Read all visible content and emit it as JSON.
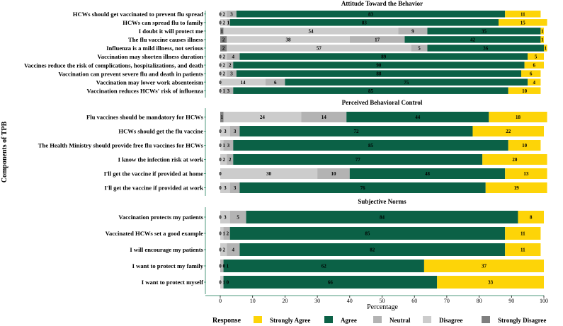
{
  "chart_data": {
    "type": "bar",
    "orientation": "horizontal-stacked",
    "ylabel": "Components of TPB",
    "xlabel": "Percentage",
    "xlim": [
      0,
      100
    ],
    "xticks": [
      0,
      10,
      20,
      30,
      40,
      50,
      60,
      70,
      80,
      90,
      100
    ],
    "legend": {
      "title": "Response",
      "position": "bottom",
      "items": [
        "Strongly Agree",
        "Agree",
        "Neutral",
        "Disagree",
        "Strongly Disagree"
      ]
    },
    "colors": {
      "Strongly Disagree": "#7f7f7f",
      "Disagree": "#cccccc",
      "Neutral": "#b3b3b3",
      "Agree": "#0b6146",
      "Strongly Agree": "#fdd408"
    },
    "stack_order": [
      "Strongly Disagree",
      "Disagree",
      "Neutral",
      "Agree",
      "Strongly Agree"
    ],
    "panels": [
      {
        "title": "Attitude Toward the Behavior",
        "rows": [
          {
            "label": "HCWs should get vaccinated to prevent flu spread",
            "values": [
              0,
              2,
              3,
              83,
              11
            ],
            "labels": [
              "0",
              "2",
              "3",
              "83",
              "11"
            ]
          },
          {
            "label": "HCWs can spread flu to family",
            "values": [
              0,
              2,
              1,
              83,
              15
            ],
            "labels": [
              "0",
              "2",
              "1",
              "83",
              "15"
            ]
          },
          {
            "label": "I doubt it will protect me",
            "values": [
              1,
              54,
              9,
              35,
              1
            ],
            "labels": [
              "1",
              "54",
              "9",
              "35",
              "1"
            ]
          },
          {
            "label": "The flu vaccine causes illness",
            "values": [
              2,
              38,
              17,
              42,
              1
            ],
            "labels": [
              "2",
              "38",
              "17",
              "42",
              "1"
            ]
          },
          {
            "label": "Influenza is a mild illness, not serious",
            "values": [
              2,
              57,
              5,
              36,
              1
            ],
            "labels": [
              "2",
              "57",
              "5",
              "36",
              "1"
            ]
          },
          {
            "label": "Vaccination may shorten illness duration",
            "values": [
              0,
              2,
              4,
              89,
              5
            ],
            "labels": [
              "0",
              "2",
              "4",
              "89",
              "5"
            ]
          },
          {
            "label": "Vaccines reduce the risk of complications, hospitalizations, and death",
            "values": [
              0,
              2,
              2,
              90,
              6
            ],
            "labels": [
              "0",
              "2",
              "2",
              "90",
              "6"
            ]
          },
          {
            "label": "Vaccination can prevent severe flu and death in patients",
            "values": [
              0,
              2,
              3,
              88,
              6
            ],
            "labels": [
              "0",
              "2",
              "3",
              "88",
              "6"
            ]
          },
          {
            "label": "Vaccination may lower work absenteeism",
            "values": [
              0,
              14,
              6,
              75,
              4
            ],
            "labels": [
              "0",
              "14",
              "6",
              "75",
              "4"
            ]
          },
          {
            "label": "Vaccination reduces HCWs' risk of influenza",
            "values": [
              0,
              1,
              3,
              85,
              10
            ],
            "labels": [
              "0",
              "1",
              "3",
              "85",
              "10"
            ]
          }
        ]
      },
      {
        "title": "Perceived Behavioral Control",
        "rows": [
          {
            "label": "Flu vaccines should be mandatory for HCWs",
            "values": [
              1,
              24,
              14,
              44,
              18
            ],
            "labels": [
              "1",
              "24",
              "14",
              "44",
              "18"
            ]
          },
          {
            "label": "HCWs should get the flu vaccine",
            "values": [
              0,
              3,
              3,
              72,
              22
            ],
            "labels": [
              "0",
              "3",
              "3",
              "72",
              "22"
            ]
          },
          {
            "label": "The Health Ministry should provide free flu vaccines for HCWs",
            "values": [
              0,
              1,
              3,
              85,
              10
            ],
            "labels": [
              "0",
              "1",
              "3",
              "85",
              "10"
            ]
          },
          {
            "label": "I know the infection risk at work",
            "values": [
              0,
              2,
              2,
              77,
              20
            ],
            "labels": [
              "0",
              "2",
              "2",
              "77",
              "20"
            ]
          },
          {
            "label": "I'll get the vaccine if provided at home",
            "values": [
              0,
              30,
              10,
              48,
              13
            ],
            "labels": [
              "0",
              "30",
              "10",
              "48",
              "13"
            ]
          },
          {
            "label": "I'll get the vaccine if provided at work",
            "values": [
              0,
              3,
              3,
              76,
              19
            ],
            "labels": [
              "0",
              "3",
              "3",
              "76",
              "19"
            ]
          }
        ]
      },
      {
        "title": "Subjective Norms",
        "rows": [
          {
            "label": "Vaccination protects my patients",
            "values": [
              0,
              3,
              5,
              84,
              8
            ],
            "labels": [
              "0",
              "3",
              "5",
              "84",
              "8"
            ]
          },
          {
            "label": "Vaccinated HCWs set a good example",
            "values": [
              0,
              1,
              2,
              85,
              11
            ],
            "labels": [
              "0",
              "1",
              "2",
              "85",
              "11"
            ]
          },
          {
            "label": "I will encourage my patients",
            "values": [
              0,
              2,
              4,
              82,
              11
            ],
            "labels": [
              "0",
              "2",
              "4",
              "82",
              "11"
            ]
          },
          {
            "label": "I want to protect my family",
            "values": [
              0,
              0,
              1,
              62,
              37
            ],
            "labels": [
              "0",
              "0",
              "1",
              "62",
              "37"
            ]
          },
          {
            "label": "I want to protect myself",
            "values": [
              0,
              1,
              0,
              66,
              33
            ],
            "labels": [
              "0",
              "1",
              "0",
              "66",
              "33"
            ]
          }
        ]
      }
    ]
  }
}
